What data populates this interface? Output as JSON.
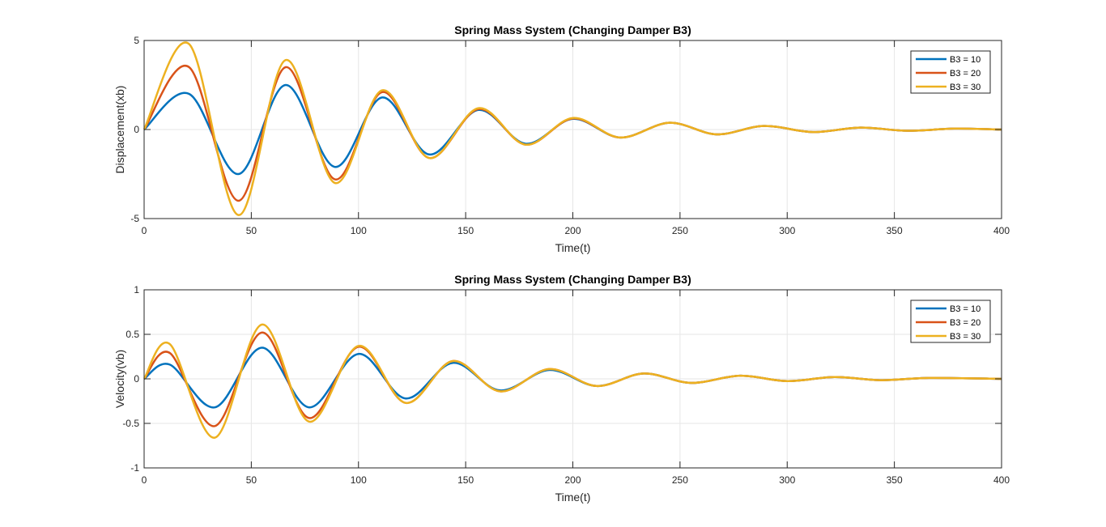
{
  "chart_data": [
    {
      "type": "line",
      "title": "Spring Mass System (Changing Damper B3)",
      "xlabel": "Time(t)",
      "ylabel": "Displacement(xb)",
      "xlim": [
        0,
        400
      ],
      "ylim": [
        -5,
        5
      ],
      "xticks": [
        "0",
        "50",
        "100",
        "150",
        "200",
        "250",
        "300",
        "350",
        "400"
      ],
      "yticks": [
        "-5",
        "0",
        "5"
      ],
      "grid": true,
      "legend": "top-right",
      "x": [
        0,
        21,
        44,
        66,
        89,
        111,
        133,
        156,
        178,
        200,
        222,
        245,
        267,
        289,
        312,
        334,
        356,
        378,
        400
      ],
      "series": [
        {
          "name": "B3 = 10",
          "color": "#0072BD",
          "values": [
            0,
            2.0,
            -2.5,
            2.5,
            -2.1,
            1.8,
            -1.4,
            1.1,
            -0.8,
            0.6,
            -0.45,
            0.38,
            -0.27,
            0.2,
            -0.14,
            0.11,
            -0.07,
            0.05,
            0
          ]
        },
        {
          "name": "B3 = 20",
          "color": "#D95319",
          "values": [
            0,
            3.5,
            -4.0,
            3.5,
            -2.8,
            2.1,
            -1.6,
            1.15,
            -0.85,
            0.62,
            -0.45,
            0.38,
            -0.27,
            0.2,
            -0.14,
            0.11,
            -0.07,
            0.05,
            0
          ]
        },
        {
          "name": "B3 = 30",
          "color": "#EDB120",
          "values": [
            0,
            4.8,
            -4.8,
            3.9,
            -3.0,
            2.2,
            -1.6,
            1.2,
            -0.85,
            0.65,
            -0.45,
            0.38,
            -0.27,
            0.2,
            -0.14,
            0.11,
            -0.07,
            0.05,
            0
          ]
        }
      ]
    },
    {
      "type": "line",
      "title": "Spring Mass System (Changing Damper B3)",
      "xlabel": "Time(t)",
      "ylabel": "Velocity(vb)",
      "xlim": [
        0,
        400
      ],
      "ylim": [
        -1,
        1
      ],
      "xticks": [
        "0",
        "50",
        "100",
        "150",
        "200",
        "250",
        "300",
        "350",
        "400"
      ],
      "yticks": [
        "-1",
        "-0.5",
        "0",
        "0.5",
        "1"
      ],
      "grid": true,
      "legend": "top-right",
      "x": [
        0,
        12,
        33,
        55,
        77,
        100,
        122,
        144,
        166,
        189,
        211,
        233,
        255,
        278,
        300,
        322,
        344,
        366,
        400
      ],
      "series": [
        {
          "name": "B3 = 10",
          "color": "#0072BD",
          "values": [
            0,
            0.16,
            -0.32,
            0.35,
            -0.32,
            0.28,
            -0.22,
            0.18,
            -0.13,
            0.1,
            -0.08,
            0.06,
            -0.045,
            0.035,
            -0.025,
            0.02,
            -0.015,
            0.01,
            0
          ]
        },
        {
          "name": "B3 = 20",
          "color": "#D95319",
          "values": [
            0,
            0.29,
            -0.53,
            0.52,
            -0.44,
            0.36,
            -0.27,
            0.2,
            -0.14,
            0.11,
            -0.08,
            0.06,
            -0.045,
            0.035,
            -0.025,
            0.02,
            -0.015,
            0.01,
            0
          ]
        },
        {
          "name": "B3 = 30",
          "color": "#EDB120",
          "values": [
            0,
            0.39,
            -0.66,
            0.61,
            -0.48,
            0.37,
            -0.27,
            0.2,
            -0.14,
            0.11,
            -0.08,
            0.06,
            -0.045,
            0.035,
            -0.025,
            0.02,
            -0.015,
            0.01,
            0
          ]
        }
      ]
    }
  ]
}
